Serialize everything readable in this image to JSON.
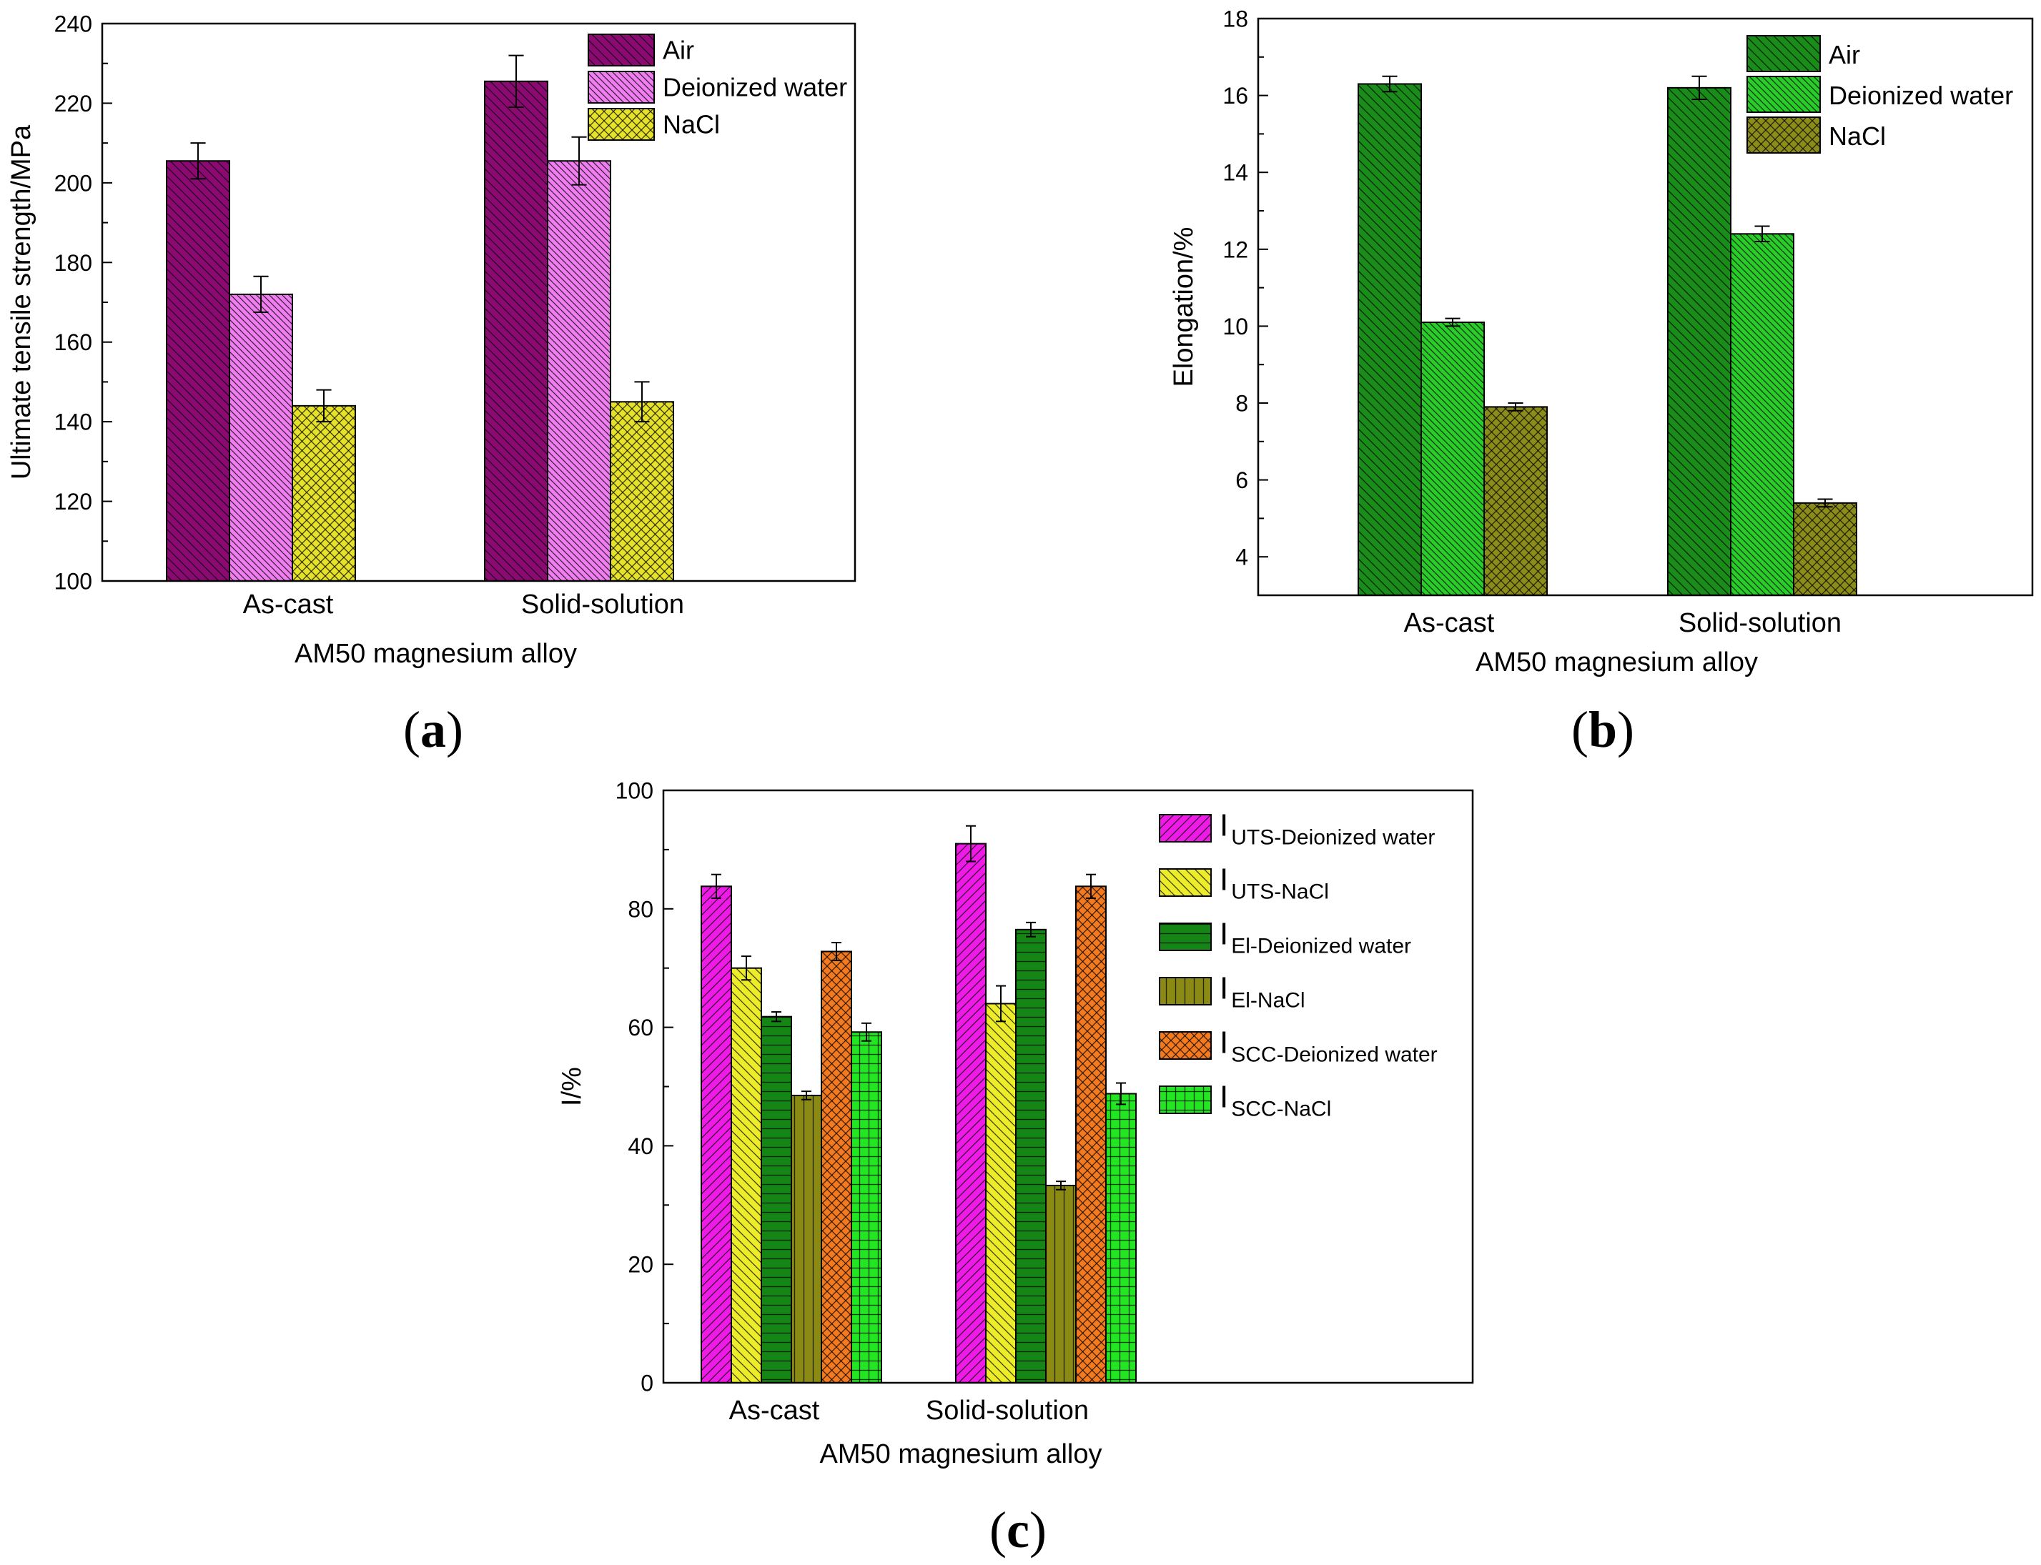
{
  "chart_data": [
    {
      "id": "a",
      "type": "bar",
      "panel_label": "(a)",
      "panel_letter": "a",
      "xlabel": "AM50 magnesium alloy",
      "ylabel": "Ultimate tensile strength/MPa",
      "ylim": [
        100,
        240
      ],
      "yticks": [
        "100",
        "120",
        "140",
        "160",
        "180",
        "200",
        "220",
        "240"
      ],
      "categories": [
        "As-cast",
        "Solid-solution"
      ],
      "legend_position": "top-right",
      "series": [
        {
          "name": "Air",
          "values": [
            205.5,
            225.5
          ],
          "errors": [
            4.5,
            6.5
          ],
          "color": "#8b0a72",
          "pattern": "diag-left"
        },
        {
          "name": "Deionized water",
          "values": [
            172,
            205.5
          ],
          "errors": [
            4.5,
            6
          ],
          "color": "#f07ef0",
          "pattern": "diag-left-dense"
        },
        {
          "name": "NaCl",
          "values": [
            144,
            145
          ],
          "errors": [
            4,
            5
          ],
          "color": "#e6e22a",
          "pattern": "cross"
        }
      ]
    },
    {
      "id": "b",
      "type": "bar",
      "panel_label": "(b)",
      "panel_letter": "b",
      "xlabel": "AM50 magnesium alloy",
      "ylabel": "Elongation/%",
      "ylim": [
        3,
        18
      ],
      "yticks": [
        "4",
        "6",
        "8",
        "10",
        "12",
        "14",
        "16",
        "18"
      ],
      "categories": [
        "As-cast",
        "Solid-solution"
      ],
      "legend_position": "top-right",
      "series": [
        {
          "name": "Air",
          "values": [
            16.3,
            16.2
          ],
          "errors": [
            0.2,
            0.3
          ],
          "color": "#1a8c1a",
          "pattern": "diag-left"
        },
        {
          "name": "Deionized water",
          "values": [
            10.1,
            12.4
          ],
          "errors": [
            0.1,
            0.2
          ],
          "color": "#29cc29",
          "pattern": "diag-left-dense"
        },
        {
          "name": "NaCl",
          "values": [
            7.9,
            5.4
          ],
          "errors": [
            0.1,
            0.1
          ],
          "color": "#8c8c1a",
          "pattern": "cross"
        }
      ]
    },
    {
      "id": "c",
      "type": "bar",
      "panel_label": "(c)",
      "panel_letter": "c",
      "xlabel": "AM50 magnesium alloy",
      "ylabel": "I/%",
      "ylim": [
        0,
        100
      ],
      "yticks": [
        "0",
        "20",
        "40",
        "60",
        "80",
        "100"
      ],
      "categories": [
        "As-cast",
        "Solid-solution"
      ],
      "legend_position": "top-right",
      "series": [
        {
          "name": "I",
          "subscript": "UTS-Deionized water",
          "values": [
            83.8,
            91
          ],
          "errors": [
            2,
            3
          ],
          "color": "#ee1be6",
          "pattern": "diag-right"
        },
        {
          "name": "I",
          "subscript": "UTS-NaCl",
          "values": [
            70,
            64
          ],
          "errors": [
            2,
            3
          ],
          "color": "#ecec2a",
          "pattern": "diag-left"
        },
        {
          "name": "I",
          "subscript": "El-Deionized water",
          "values": [
            61.8,
            76.5
          ],
          "errors": [
            0.8,
            1.2
          ],
          "color": "#158515",
          "pattern": "horizontal"
        },
        {
          "name": "I",
          "subscript": "El-NaCl",
          "values": [
            48.5,
            33.3
          ],
          "errors": [
            0.7,
            0.7
          ],
          "color": "#8a8a15",
          "pattern": "vertical"
        },
        {
          "name": "I",
          "subscript": "SCC-Deionized water",
          "values": [
            72.8,
            83.8
          ],
          "errors": [
            1.5,
            2
          ],
          "color": "#f37a1f",
          "pattern": "cross"
        },
        {
          "name": "I",
          "subscript": "SCC-NaCl",
          "values": [
            59.2,
            48.8
          ],
          "errors": [
            1.5,
            1.8
          ],
          "color": "#22e622",
          "pattern": "grid"
        }
      ]
    }
  ]
}
